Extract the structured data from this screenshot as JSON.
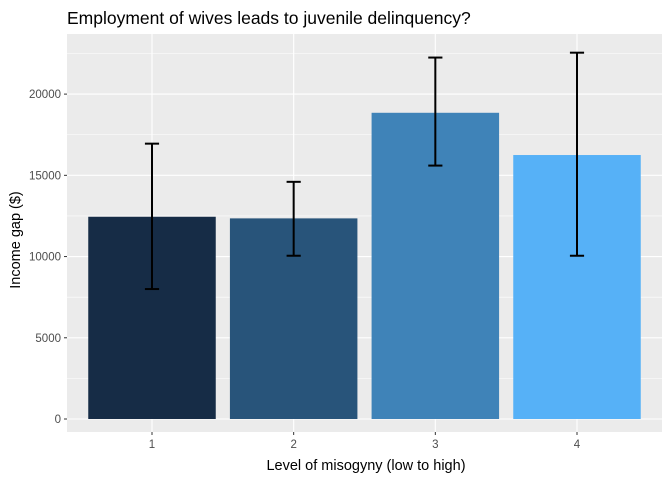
{
  "chart_data": {
    "type": "bar",
    "title": "Employment of wives leads to juvenile delinquency?",
    "xlabel": "Level of misogyny (low to high)",
    "ylabel": "Income gap ($)",
    "categories": [
      "1",
      "2",
      "3",
      "4"
    ],
    "values": [
      12450,
      12350,
      18850,
      16250
    ],
    "error_bars": [
      {
        "low": 8000,
        "high": 16950
      },
      {
        "low": 10050,
        "high": 14600
      },
      {
        "low": 15600,
        "high": 22250
      },
      {
        "low": 10050,
        "high": 22550
      }
    ],
    "ylim": [
      -800,
      23700
    ],
    "y_ticks": [
      0,
      5000,
      10000,
      15000,
      20000
    ],
    "y_tick_labels": [
      "0",
      "5000",
      "10000",
      "15000",
      "20000"
    ],
    "bar_colors": [
      "#162c46",
      "#28547a",
      "#3f83b8",
      "#56b1f7"
    ],
    "panel_background": "#ebebeb",
    "grid": true,
    "legend": "none"
  }
}
